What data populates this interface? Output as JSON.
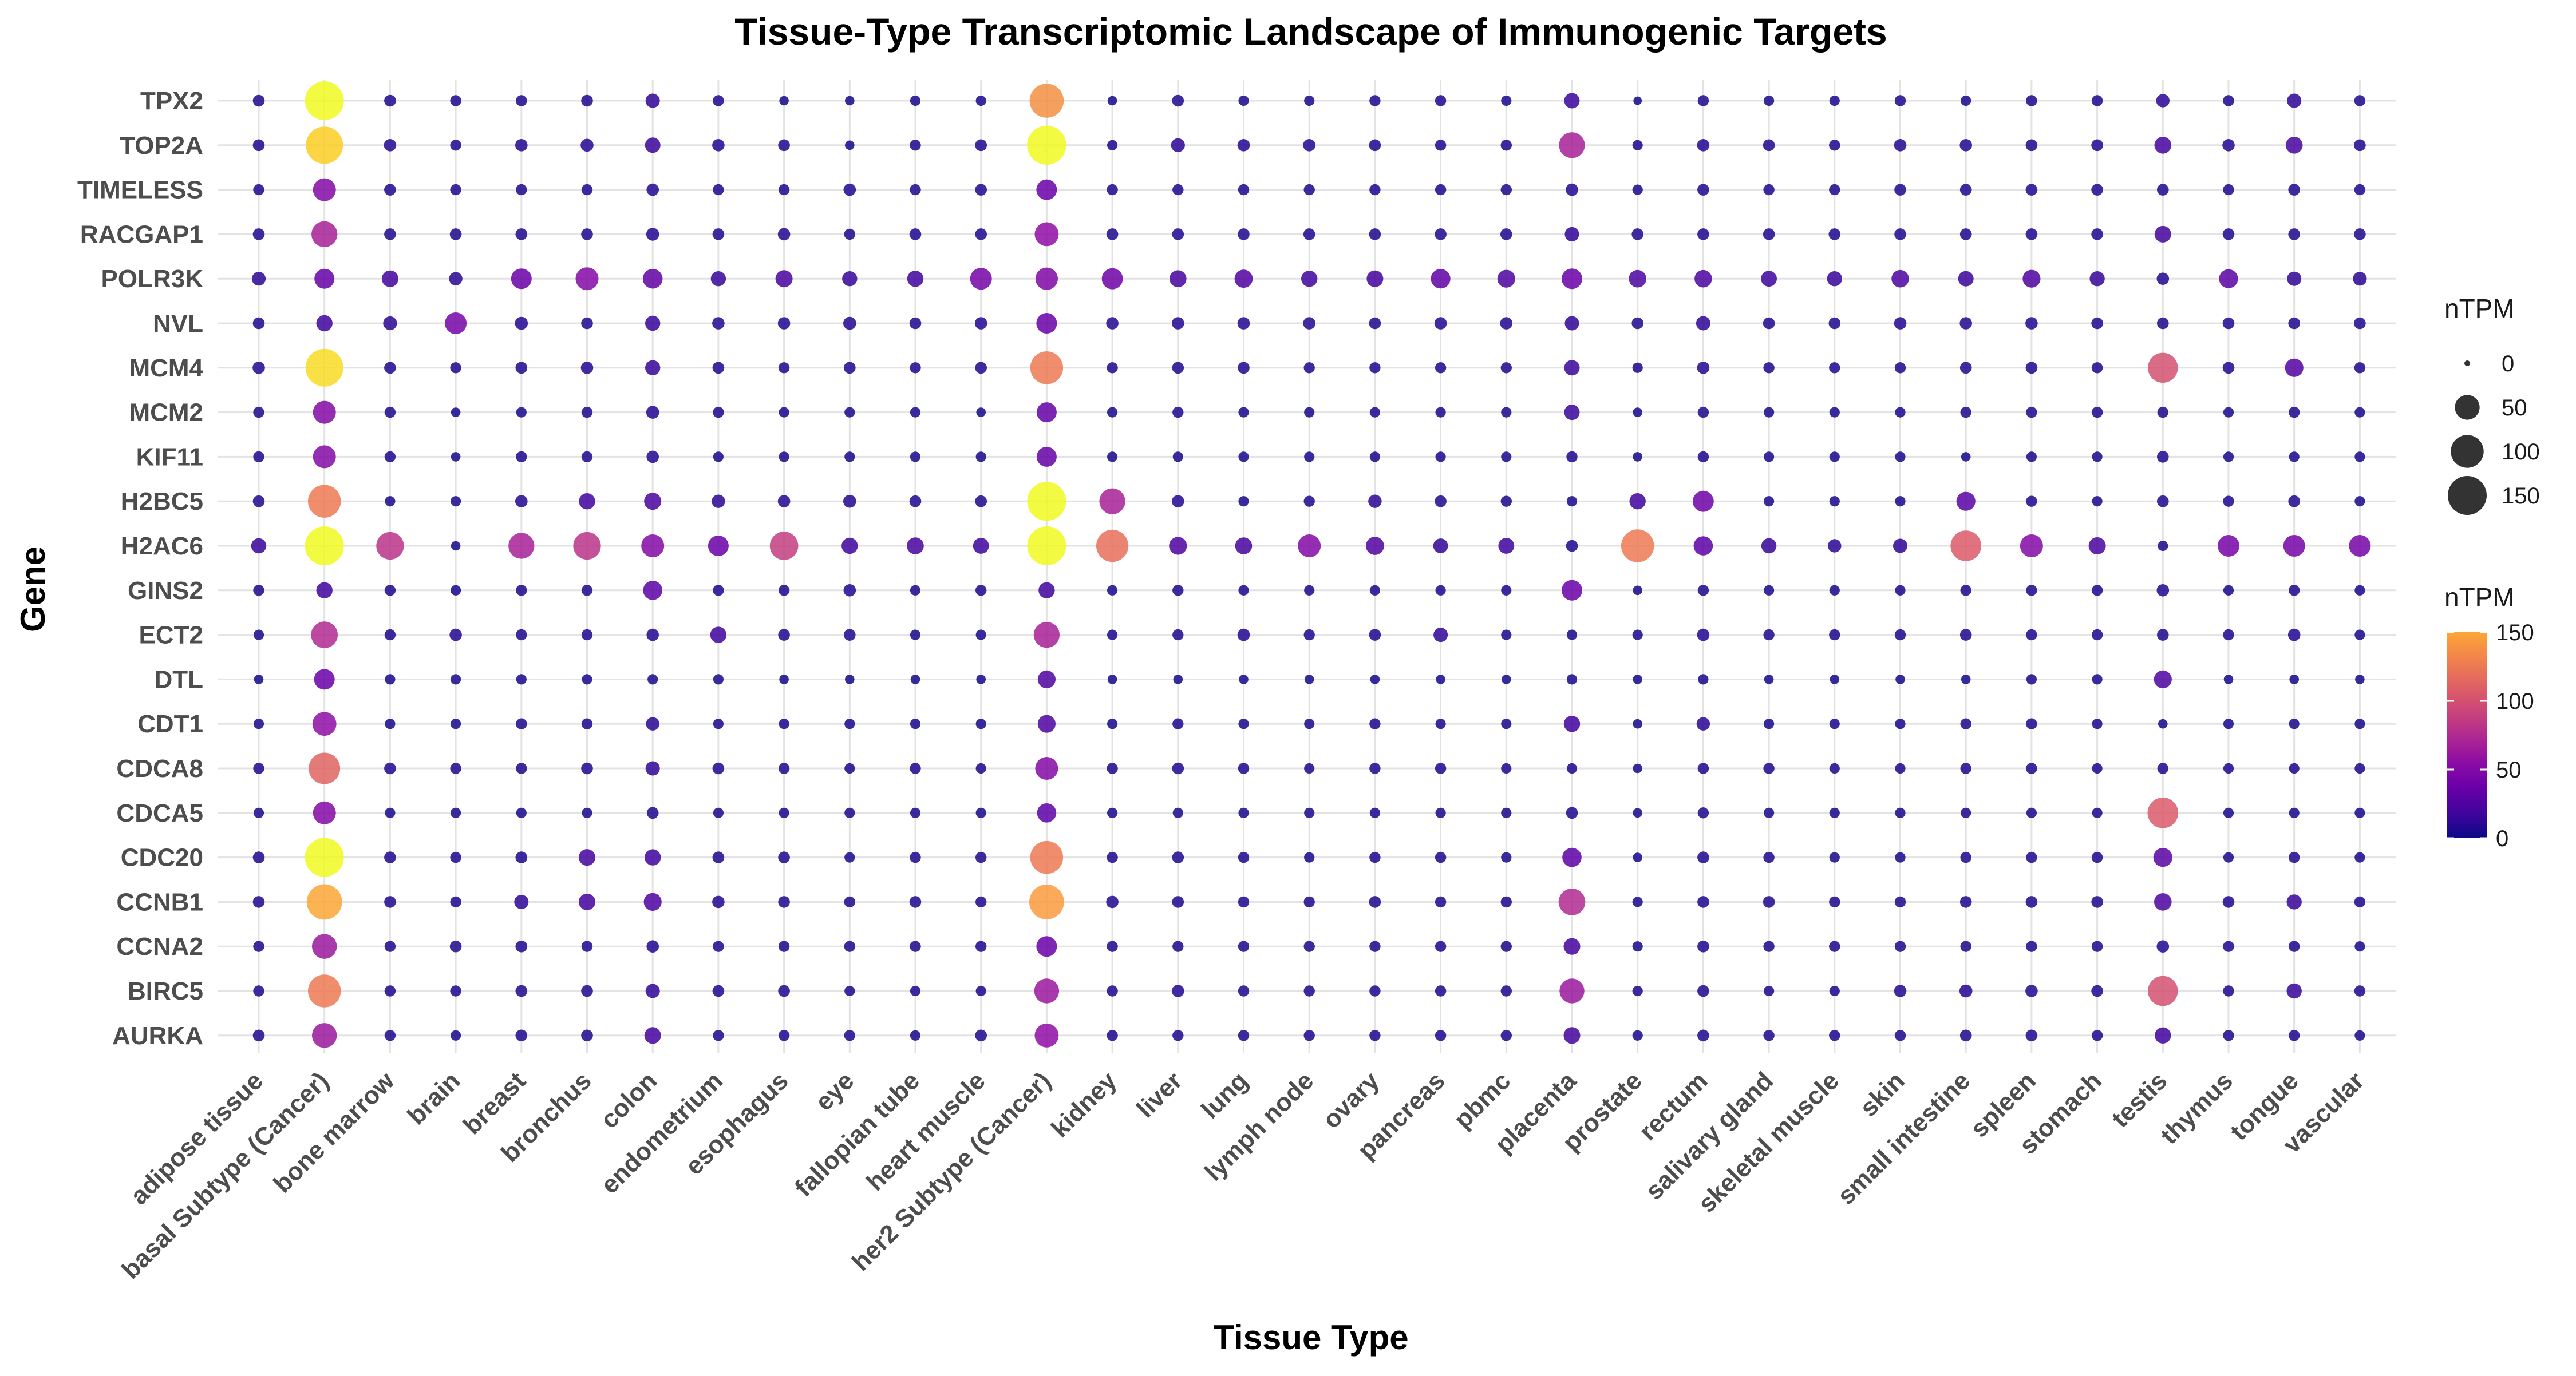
{
  "chart_data": {
    "type": "scatter",
    "title": "Tissue-Type Transcriptomic Landscape of Immunogenic Targets",
    "xlabel": "Tissue Type",
    "ylabel": "Gene",
    "tissues": [
      "adipose tissue",
      "basal Subtype (Cancer)",
      "bone marrow",
      "brain",
      "breast",
      "bronchus",
      "colon",
      "endometrium",
      "esophagus",
      "eye",
      "fallopian tube",
      "heart muscle",
      "her2 Subtype (Cancer)",
      "kidney",
      "liver",
      "lung",
      "lymph node",
      "ovary",
      "pancreas",
      "pbmc",
      "placenta",
      "prostate",
      "rectum",
      "salivary gland",
      "skeletal muscle",
      "skin",
      "small intestine",
      "spleen",
      "stomach",
      "testis",
      "thymus",
      "tongue",
      "vascular"
    ],
    "genes": [
      "TPX2",
      "TOP2A",
      "TIMELESS",
      "RACGAP1",
      "POLR3K",
      "NVL",
      "MCM4",
      "MCM2",
      "KIF11",
      "H2BC5",
      "H2AC6",
      "GINS2",
      "ECT2",
      "DTL",
      "CDT1",
      "CDCA8",
      "CDCA5",
      "CDC20",
      "CCNB1",
      "CCNA2",
      "BIRC5",
      "AURKA"
    ],
    "nTPM": [
      [
        5,
        150,
        5,
        4,
        4,
        5,
        10,
        4,
        2,
        2,
        3,
        3,
        110,
        2,
        5,
        3,
        3,
        4,
        4,
        3,
        13,
        1,
        4,
        3,
        3,
        4,
        3,
        4,
        4,
        8,
        4,
        10,
        4
      ],
      [
        5,
        135,
        6,
        4,
        6,
        7,
        13,
        6,
        5,
        2,
        4,
        5,
        152,
        3,
        9,
        6,
        6,
        5,
        4,
        4,
        55,
        3,
        6,
        5,
        4,
        6,
        6,
        5,
        5,
        17,
        6,
        17,
        5
      ],
      [
        4,
        40,
        5,
        4,
        4,
        4,
        6,
        4,
        4,
        6,
        4,
        5,
        30,
        4,
        4,
        4,
        4,
        4,
        4,
        4,
        6,
        3,
        5,
        4,
        4,
        5,
        5,
        5,
        5,
        5,
        4,
        5,
        4
      ],
      [
        5,
        55,
        5,
        5,
        5,
        5,
        7,
        5,
        6,
        4,
        5,
        5,
        45,
        5,
        5,
        5,
        5,
        5,
        5,
        5,
        10,
        5,
        5,
        5,
        5,
        5,
        5,
        5,
        5,
        16,
        5,
        5,
        5
      ],
      [
        9,
        28,
        16,
        8,
        30,
        40,
        27,
        12,
        18,
        12,
        15,
        35,
        38,
        32,
        17,
        21,
        15,
        16,
        26,
        20,
        30,
        19,
        19,
        14,
        12,
        19,
        13,
        20,
        12,
        6,
        24,
        10,
        9
      ],
      [
        5,
        15,
        9,
        35,
        7,
        5,
        12,
        6,
        6,
        7,
        5,
        6,
        30,
        6,
        6,
        6,
        6,
        5,
        6,
        6,
        10,
        5,
        10,
        5,
        5,
        6,
        6,
        6,
        5,
        5,
        5,
        5,
        5
      ],
      [
        6,
        140,
        5,
        4,
        5,
        6,
        12,
        5,
        4,
        5,
        4,
        5,
        100,
        4,
        5,
        5,
        4,
        4,
        4,
        4,
        13,
        3,
        6,
        4,
        4,
        4,
        5,
        5,
        4,
        80,
        5,
        22,
        4
      ],
      [
        4,
        40,
        4,
        2,
        3,
        4,
        7,
        4,
        3,
        3,
        3,
        2,
        28,
        3,
        4,
        3,
        3,
        3,
        3,
        3,
        13,
        2,
        4,
        3,
        3,
        3,
        4,
        4,
        4,
        4,
        3,
        4,
        3
      ],
      [
        4,
        40,
        4,
        2,
        4,
        4,
        6,
        3,
        3,
        3,
        3,
        3,
        28,
        3,
        3,
        3,
        3,
        3,
        3,
        3,
        4,
        2,
        4,
        3,
        3,
        3,
        2,
        3,
        3,
        5,
        3,
        3,
        3
      ],
      [
        5,
        100,
        3,
        3,
        6,
        15,
        18,
        8,
        6,
        7,
        5,
        5,
        150,
        55,
        6,
        3,
        4,
        8,
        5,
        4,
        3,
        15,
        32,
        3,
        3,
        3,
        24,
        4,
        3,
        5,
        4,
        5,
        3
      ],
      [
        12,
        150,
        65,
        2,
        55,
        65,
        40,
        30,
        70,
        15,
        17,
        14,
        150,
        95,
        20,
        17,
        40,
        21,
        11,
        14,
        5,
        100,
        25,
        12,
        8,
        10,
        85,
        40,
        18,
        3,
        35,
        35,
        35
      ],
      [
        4,
        15,
        4,
        3,
        4,
        4,
        25,
        4,
        4,
        6,
        3,
        4,
        15,
        3,
        4,
        3,
        3,
        3,
        3,
        3,
        30,
        2,
        4,
        3,
        3,
        3,
        4,
        4,
        4,
        6,
        3,
        4,
        3
      ],
      [
        3,
        60,
        4,
        6,
        4,
        4,
        6,
        15,
        5,
        5,
        3,
        3,
        55,
        3,
        4,
        6,
        4,
        5,
        10,
        3,
        3,
        3,
        6,
        4,
        4,
        4,
        5,
        4,
        4,
        5,
        4,
        6,
        3
      ],
      [
        2,
        30,
        3,
        3,
        3,
        3,
        3,
        3,
        2,
        2,
        2,
        2,
        20,
        2,
        2,
        2,
        2,
        2,
        2,
        2,
        3,
        2,
        3,
        2,
        2,
        2,
        2,
        3,
        3,
        20,
        2,
        2,
        2
      ],
      [
        3,
        45,
        3,
        3,
        4,
        4,
        8,
        3,
        3,
        3,
        3,
        3,
        20,
        3,
        4,
        3,
        3,
        4,
        3,
        3,
        15,
        2,
        8,
        3,
        3,
        3,
        4,
        4,
        3,
        2,
        3,
        3,
        3
      ],
      [
        4,
        90,
        5,
        4,
        4,
        5,
        10,
        5,
        4,
        3,
        4,
        3,
        40,
        4,
        5,
        4,
        3,
        4,
        4,
        3,
        3,
        2,
        4,
        4,
        3,
        3,
        4,
        4,
        3,
        4,
        3,
        3,
        3
      ],
      [
        3,
        40,
        3,
        3,
        3,
        3,
        5,
        3,
        3,
        3,
        3,
        3,
        25,
        3,
        3,
        3,
        3,
        3,
        3,
        3,
        5,
        2,
        4,
        3,
        3,
        3,
        3,
        3,
        3,
        85,
        3,
        3,
        3
      ],
      [
        5,
        150,
        5,
        4,
        5,
        16,
        15,
        5,
        5,
        3,
        4,
        4,
        100,
        4,
        5,
        4,
        3,
        4,
        4,
        3,
        25,
        2,
        5,
        4,
        3,
        3,
        4,
        4,
        4,
        24,
        3,
        4,
        3
      ],
      [
        5,
        120,
        5,
        4,
        10,
        16,
        20,
        6,
        5,
        4,
        5,
        4,
        115,
        6,
        5,
        4,
        4,
        5,
        4,
        4,
        60,
        3,
        5,
        5,
        4,
        4,
        5,
        5,
        5,
        19,
        5,
        12,
        4
      ],
      [
        4,
        50,
        4,
        5,
        5,
        4,
        6,
        4,
        4,
        4,
        4,
        4,
        30,
        4,
        4,
        4,
        4,
        4,
        4,
        4,
        16,
        3,
        5,
        4,
        4,
        4,
        4,
        4,
        4,
        6,
        4,
        4,
        3
      ],
      [
        4,
        100,
        4,
        4,
        5,
        5,
        10,
        5,
        5,
        3,
        3,
        3,
        50,
        4,
        6,
        4,
        4,
        4,
        4,
        4,
        50,
        3,
        5,
        3,
        3,
        6,
        7,
        6,
        5,
        80,
        4,
        12,
        4
      ],
      [
        5,
        50,
        4,
        3,
        5,
        5,
        16,
        4,
        4,
        4,
        3,
        5,
        45,
        4,
        4,
        4,
        4,
        4,
        4,
        4,
        16,
        3,
        5,
        4,
        4,
        4,
        5,
        5,
        4,
        15,
        4,
        4,
        3
      ]
    ],
    "size_legend": {
      "title": "nTPM",
      "values": [
        0,
        50,
        100,
        150
      ]
    },
    "color_legend": {
      "title": "nTPM",
      "ticks": [
        0,
        50,
        100,
        150
      ],
      "colormap": "plasma"
    },
    "xlim": [
      0.5,
      33.5
    ],
    "ylim": [
      0.5,
      22.5
    ]
  }
}
